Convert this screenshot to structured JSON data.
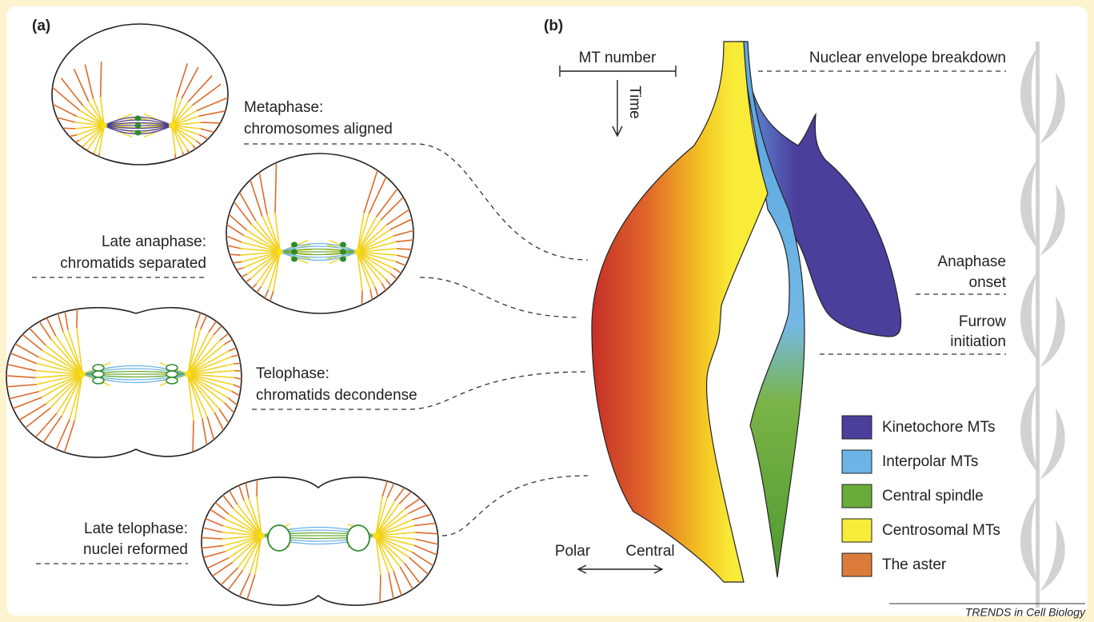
{
  "panels": [
    {
      "label": "(a)"
    },
    {
      "label": "(b)"
    }
  ],
  "phases": [
    {
      "line1": "Metaphase:",
      "line2": "chromosomes aligned"
    },
    {
      "line1": "Late anaphase:",
      "line2": "chromatids separated"
    },
    {
      "line1": "Telophase:",
      "line2": "chromatids decondense"
    },
    {
      "line1": "Late telophase:",
      "line2": "nuclei reformed"
    }
  ],
  "axes": {
    "mt_number": "MT number",
    "time": "Time",
    "polar": "Polar",
    "central": "Central"
  },
  "events": [
    {
      "line1": "Nuclear envelope breakdown"
    },
    {
      "line1": "Anaphase",
      "line2": "onset"
    },
    {
      "line1": "Furrow",
      "line2": "initiation"
    }
  ],
  "legend": [
    {
      "label": "Kinetochore MTs",
      "color": "#4b3f9c"
    },
    {
      "label": "Interpolar MTs",
      "color": "#6cb4e6"
    },
    {
      "label": "Central spindle",
      "color": "#6aab3a"
    },
    {
      "label": "Centrosomal MTs",
      "color": "#f7ec3a"
    },
    {
      "label": "The aster",
      "color": "#db7b3a"
    }
  ],
  "credit": "TRENDS in Cell Biology"
}
